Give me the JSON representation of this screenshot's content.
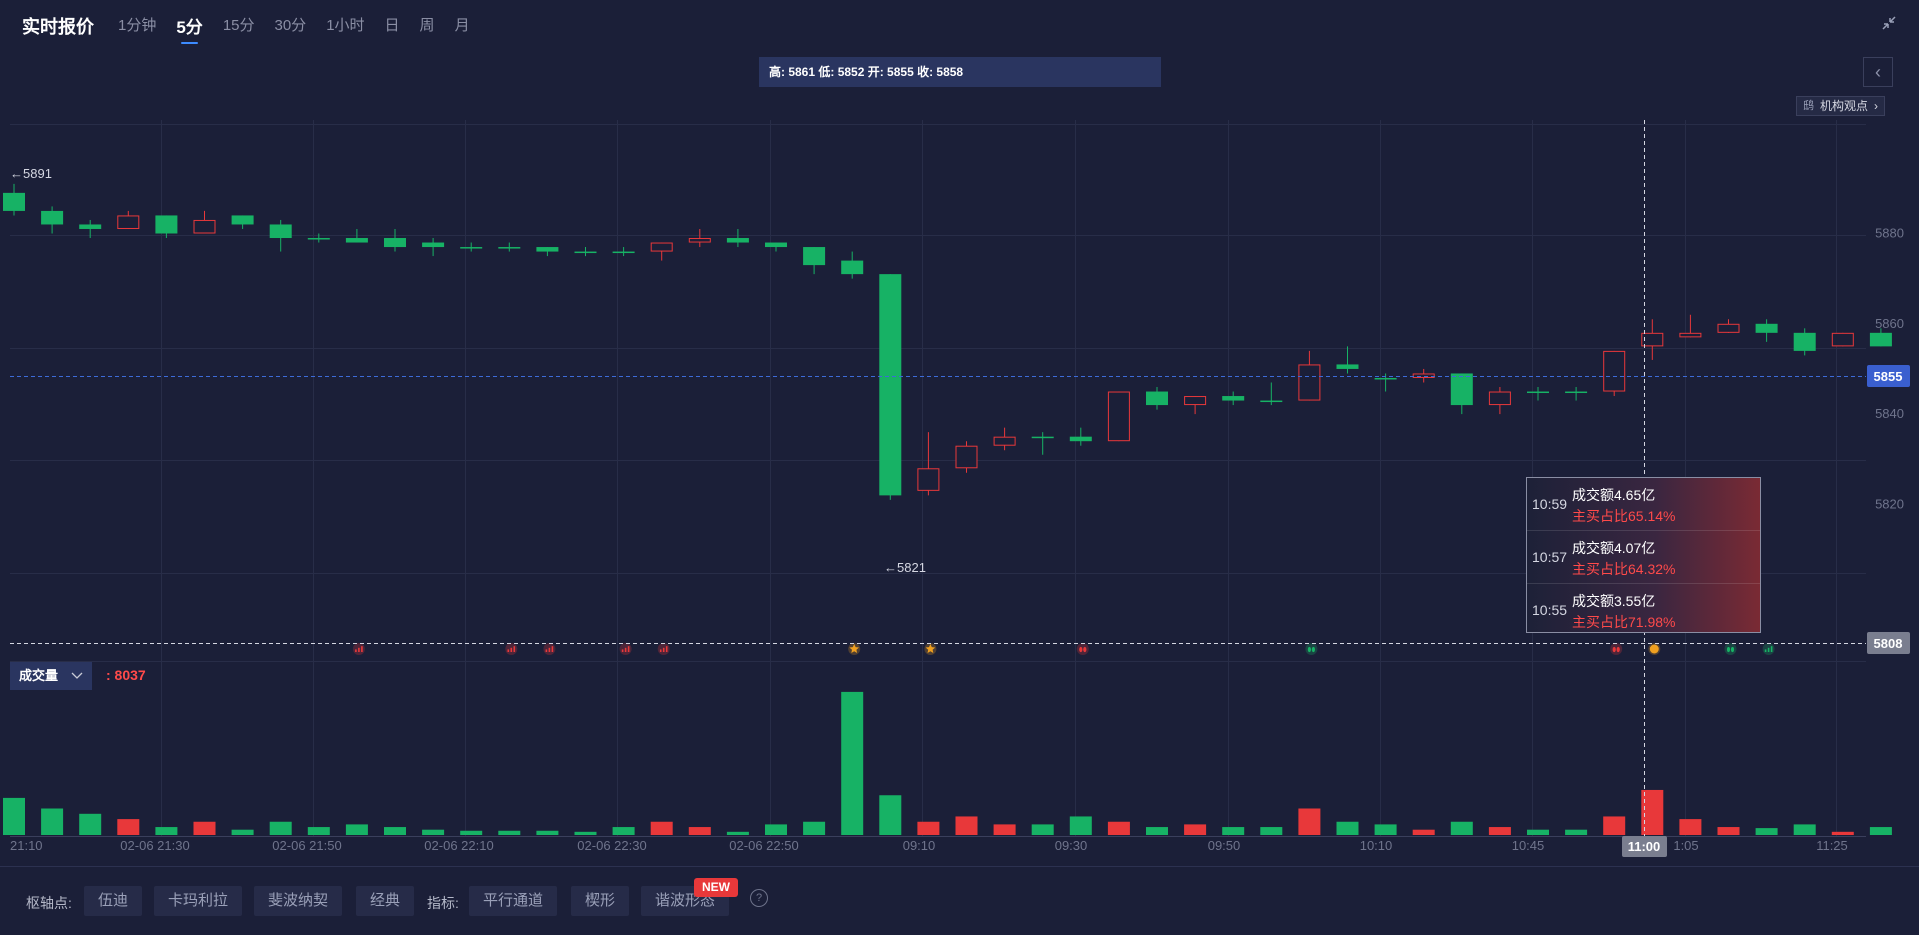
{
  "header": {
    "title": "实时报价",
    "tabs": [
      {
        "label": "1分钟",
        "active": false
      },
      {
        "label": "5分",
        "active": true
      },
      {
        "label": "15分",
        "active": false
      },
      {
        "label": "30分",
        "active": false
      },
      {
        "label": "1小时",
        "active": false
      },
      {
        "label": "日",
        "active": false
      },
      {
        "label": "周",
        "active": false
      },
      {
        "label": "月",
        "active": false
      }
    ],
    "collapse_icon": "collapse-arrows-icon"
  },
  "ohlc": {
    "text": "高: 5861 低: 5852 开: 5855 收: 5858"
  },
  "side_toggle": {
    "icon": "chevron-left-icon",
    "symbol": "‹"
  },
  "views": {
    "owl_text": "鸱",
    "label": "机构观点",
    "chevron": "›"
  },
  "colors": {
    "up": "#e8383a",
    "down": "#17b265",
    "background": "#1b1f38",
    "accent": "#3d8bff",
    "current_price_tag": "#3a5fcf",
    "crosshair_tag": "#7a7e8f"
  },
  "price_axis": {
    "ticks": [
      "5880",
      "5860",
      "5840",
      "5820"
    ],
    "current_price": "5855",
    "crosshair_price": "5808",
    "max_annotation": "←5891",
    "min_annotation": "←5821"
  },
  "time_axis": {
    "ticks": [
      "21:10",
      "02-06 21:30",
      "02-06 21:50",
      "02-06 22:10",
      "02-06 22:30",
      "02-06 22:50",
      "09:10",
      "09:30",
      "09:50",
      "10:10",
      "10:45",
      "11:00",
      "1:05",
      "11:25"
    ],
    "crosshair_time": "11:00"
  },
  "tooltip": [
    {
      "time": "10:59",
      "amount": "成交额4.65亿",
      "ratio": "主买占比65.14%"
    },
    {
      "time": "10:57",
      "amount": "成交额4.07亿",
      "ratio": "主买占比64.32%"
    },
    {
      "time": "10:55",
      "amount": "成交额3.55亿",
      "ratio": "主买占比71.98%"
    }
  ],
  "volume": {
    "label": "成交量",
    "value": ": 8037"
  },
  "bottom": {
    "pivot_label": "枢轴点:",
    "pivot_options": [
      "伍迪",
      "卡玛利拉",
      "斐波纳契",
      "经典"
    ],
    "indicator_label": "指标:",
    "indicator_options": [
      "平行通道",
      "楔形",
      "谐波形态"
    ],
    "new_badge": "NEW",
    "help": "?"
  },
  "chart_data": {
    "type": "candlestick",
    "interval": "5分",
    "ylim": [
      5800,
      5900
    ],
    "candles": [
      {
        "open": 5889,
        "close": 5885,
        "high": 5891,
        "low": 5884
      },
      {
        "open": 5885,
        "close": 5882,
        "high": 5886,
        "low": 5880
      },
      {
        "open": 5882,
        "close": 5881,
        "high": 5883,
        "low": 5879
      },
      {
        "open": 5881,
        "close": 5884,
        "high": 5885,
        "low": 5881
      },
      {
        "open": 5884,
        "close": 5880,
        "high": 5884,
        "low": 5879
      },
      {
        "open": 5880,
        "close": 5883,
        "high": 5885,
        "low": 5880
      },
      {
        "open": 5884,
        "close": 5882,
        "high": 5884,
        "low": 5881
      },
      {
        "open": 5882,
        "close": 5879,
        "high": 5883,
        "low": 5876
      },
      {
        "open": 5879,
        "close": 5879,
        "high": 5880,
        "low": 5878
      },
      {
        "open": 5879,
        "close": 5878,
        "high": 5881,
        "low": 5878
      },
      {
        "open": 5879,
        "close": 5877,
        "high": 5881,
        "low": 5876
      },
      {
        "open": 5878,
        "close": 5877,
        "high": 5879,
        "low": 5875
      },
      {
        "open": 5877,
        "close": 5877,
        "high": 5878,
        "low": 5876
      },
      {
        "open": 5877,
        "close": 5877,
        "high": 5878,
        "low": 5876
      },
      {
        "open": 5877,
        "close": 5876,
        "high": 5877,
        "low": 5875
      },
      {
        "open": 5876,
        "close": 5876,
        "high": 5877,
        "low": 5875
      },
      {
        "open": 5876,
        "close": 5876,
        "high": 5877,
        "low": 5875
      },
      {
        "open": 5876,
        "close": 5878,
        "high": 5878,
        "low": 5874
      },
      {
        "open": 5878,
        "close": 5879,
        "high": 5881,
        "low": 5877
      },
      {
        "open": 5879,
        "close": 5878,
        "high": 5881,
        "low": 5877
      },
      {
        "open": 5878,
        "close": 5877,
        "high": 5878,
        "low": 5876
      },
      {
        "open": 5877,
        "close": 5873,
        "high": 5877,
        "low": 5871
      },
      {
        "open": 5874,
        "close": 5871,
        "high": 5876,
        "low": 5870
      },
      {
        "open": 5871,
        "close": 5822,
        "high": 5871,
        "low": 5821
      },
      {
        "open": 5823,
        "close": 5828,
        "high": 5836,
        "low": 5822
      },
      {
        "open": 5828,
        "close": 5833,
        "high": 5834,
        "low": 5827
      },
      {
        "open": 5833,
        "close": 5835,
        "high": 5837,
        "low": 5832
      },
      {
        "open": 5835,
        "close": 5835,
        "high": 5836,
        "low": 5831
      },
      {
        "open": 5835,
        "close": 5834,
        "high": 5837,
        "low": 5833
      },
      {
        "open": 5834,
        "close": 5845,
        "high": 5845,
        "low": 5834
      },
      {
        "open": 5845,
        "close": 5842,
        "high": 5846,
        "low": 5841
      },
      {
        "open": 5842,
        "close": 5844,
        "high": 5844,
        "low": 5840
      },
      {
        "open": 5844,
        "close": 5843,
        "high": 5845,
        "low": 5842
      },
      {
        "open": 5843,
        "close": 5843,
        "high": 5847,
        "low": 5842
      },
      {
        "open": 5843,
        "close": 5851,
        "high": 5854,
        "low": 5843
      },
      {
        "open": 5851,
        "close": 5850,
        "high": 5855,
        "low": 5849
      },
      {
        "open": 5848,
        "close": 5848,
        "high": 5849,
        "low": 5845
      },
      {
        "open": 5848,
        "close": 5849,
        "high": 5850,
        "low": 5847
      },
      {
        "open": 5849,
        "close": 5842,
        "high": 5849,
        "low": 5840
      },
      {
        "open": 5842,
        "close": 5845,
        "high": 5846,
        "low": 5840
      },
      {
        "open": 5845,
        "close": 5845,
        "high": 5846,
        "low": 5843
      },
      {
        "open": 5845,
        "close": 5845,
        "high": 5846,
        "low": 5843
      },
      {
        "open": 5845,
        "close": 5854,
        "high": 5854,
        "low": 5844
      },
      {
        "open": 5855,
        "close": 5858,
        "high": 5861,
        "low": 5852
      },
      {
        "open": 5857,
        "close": 5858,
        "high": 5862,
        "low": 5857
      },
      {
        "open": 5858,
        "close": 5860,
        "high": 5861,
        "low": 5858
      },
      {
        "open": 5860,
        "close": 5858,
        "high": 5861,
        "low": 5856
      },
      {
        "open": 5858,
        "close": 5854,
        "high": 5859,
        "low": 5853
      },
      {
        "open": 5855,
        "close": 5858,
        "high": 5858,
        "low": 5855
      },
      {
        "open": 5858,
        "close": 5855,
        "high": 5859,
        "low": 5855
      }
    ],
    "volume": [
      7,
      5,
      4,
      3,
      1.5,
      2.5,
      1,
      2.5,
      1.5,
      2,
      1.5,
      1,
      0.8,
      0.8,
      0.8,
      0.6,
      1.5,
      2.5,
      1.5,
      0.6,
      2,
      2.5,
      27,
      7.5,
      2.5,
      3.5,
      2,
      2,
      3.5,
      2.5,
      1.5,
      2,
      1.5,
      1.5,
      5,
      2.5,
      2,
      1,
      2.5,
      1.5,
      1,
      1,
      3.5,
      8.5,
      3,
      1.5,
      1.3,
      2,
      0.6,
      1.5
    ],
    "signal_markers": [
      {
        "type": "bars",
        "candle": 9,
        "color": "red"
      },
      {
        "type": "bars",
        "candle": 13,
        "color": "red"
      },
      {
        "type": "bars",
        "candle": 14,
        "color": "red"
      },
      {
        "type": "bars",
        "candle": 16,
        "color": "red"
      },
      {
        "type": "bars",
        "candle": 17,
        "color": "red"
      },
      {
        "type": "star",
        "candle": 22,
        "color": "gold"
      },
      {
        "type": "star",
        "candle": 24,
        "color": "gold"
      },
      {
        "type": "drops",
        "candle": 28,
        "color": "red"
      },
      {
        "type": "drops",
        "candle": 34,
        "color": "green"
      },
      {
        "type": "drops",
        "candle": 42,
        "color": "red"
      },
      {
        "type": "dot",
        "candle": 43,
        "color": "gold"
      },
      {
        "type": "drops",
        "candle": 45,
        "color": "green"
      },
      {
        "type": "bars",
        "candle": 46,
        "color": "green"
      }
    ]
  }
}
